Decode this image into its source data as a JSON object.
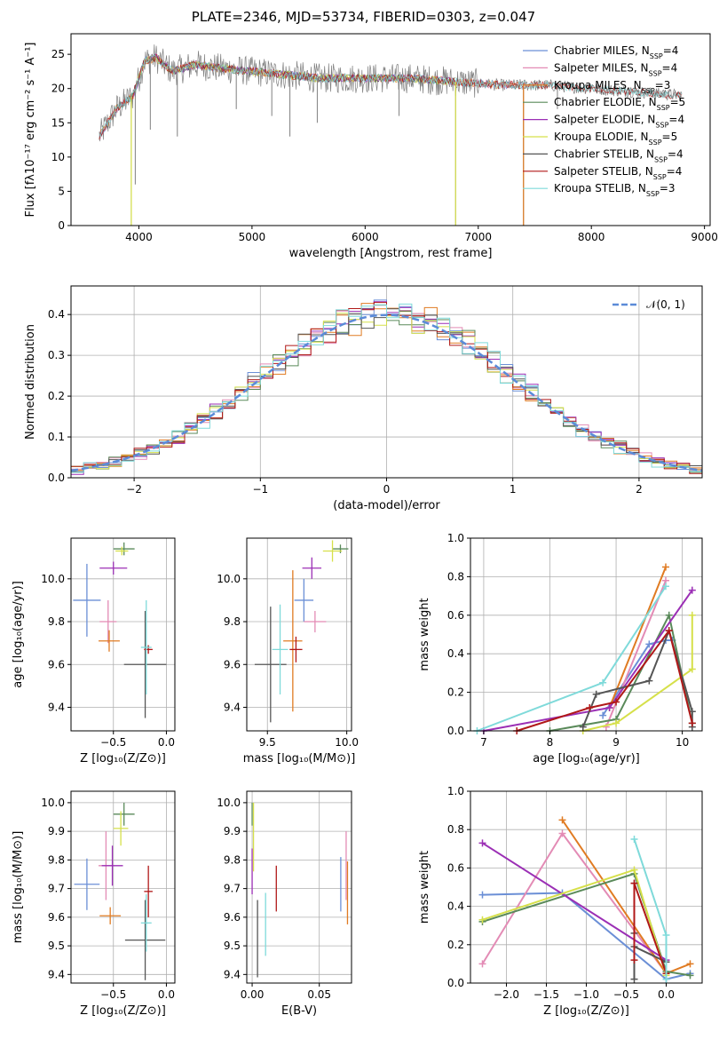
{
  "title": "PLATE=2346, MJD=53734, FIBERID=0303, z=0.047",
  "colors": {
    "Chabrier MILES": "#6b8fd6",
    "Salpeter MILES": "#e38bb5",
    "Kroupa MILES": "#e07b22",
    "Chabrier ELODIE": "#5a8a5a",
    "Salpeter ELODIE": "#9b2fb5",
    "Kroupa ELODIE": "#d6e04a",
    "Chabrier STELIB": "#555555",
    "Salpeter STELIB": "#b01818",
    "Kroupa STELIB": "#7fdada",
    "gaussian": "#5b8bd8"
  },
  "chart_data": [
    {
      "type": "line",
      "panel": "spectrum",
      "xlabel": "wavelength [Angstrom, rest frame]",
      "ylabel": "Flux [fλ10⁻¹⁷ erg cm⁻² s⁻¹ A⁻¹]",
      "xlim": [
        3400,
        9050
      ],
      "ylim": [
        0,
        28
      ],
      "xticks": [
        "4000",
        "5000",
        "6000",
        "7000",
        "8000",
        "9000"
      ],
      "yticks": [
        "0",
        "5",
        "10",
        "15",
        "20",
        "25"
      ],
      "grid": false,
      "legend_position": "top-right",
      "legend": [
        {
          "model": "Chabrier MILES",
          "nssp": "4"
        },
        {
          "model": "Salpeter MILES",
          "nssp": "4"
        },
        {
          "model": "Kroupa MILES",
          "nssp": "3"
        },
        {
          "model": "Chabrier ELODIE",
          "nssp": "5"
        },
        {
          "model": "Salpeter ELODIE",
          "nssp": "4"
        },
        {
          "model": "Kroupa ELODIE",
          "nssp": "5"
        },
        {
          "model": "Chabrier STELIB",
          "nssp": "4"
        },
        {
          "model": "Salpeter STELIB",
          "nssp": "4"
        },
        {
          "model": "Kroupa STELIB",
          "nssp": "3"
        }
      ],
      "continuum": {
        "x": [
          3650,
          3800,
          3950,
          4050,
          4150,
          4300,
          4500,
          4700,
          5000,
          5300,
          5600,
          6000,
          6400,
          6800,
          7200,
          7600,
          8000,
          8400,
          8800
        ],
        "y": [
          13,
          17,
          19,
          24,
          24.5,
          22.5,
          23.5,
          23,
          22.5,
          22,
          21.5,
          21.5,
          21.5,
          21,
          20.5,
          20.5,
          20,
          19.5,
          19
        ]
      },
      "model_ranges": [
        {
          "model": "Chabrier MILES",
          "x": [
            3650,
            7400
          ]
        },
        {
          "model": "Salpeter MILES",
          "x": [
            3650,
            7400
          ]
        },
        {
          "model": "Kroupa MILES",
          "x": [
            3650,
            7400
          ]
        },
        {
          "model": "Chabrier ELODIE",
          "x": [
            3900,
            6800
          ]
        },
        {
          "model": "Salpeter ELODIE",
          "x": [
            3900,
            6800
          ]
        },
        {
          "model": "Kroupa ELODIE",
          "x": [
            3900,
            6800
          ]
        },
        {
          "model": "Chabrier STELIB",
          "x": [
            3650,
            8800
          ]
        },
        {
          "model": "Salpeter STELIB",
          "x": [
            3650,
            8800
          ]
        },
        {
          "model": "Kroupa STELIB",
          "x": [
            3650,
            8800
          ]
        }
      ],
      "absorption_dips": [
        {
          "x": 3933,
          "y": 0
        },
        {
          "x": 3968,
          "y": 6
        },
        {
          "x": 4101,
          "y": 14
        },
        {
          "x": 4340,
          "y": 13
        },
        {
          "x": 4861,
          "y": 17
        },
        {
          "x": 5175,
          "y": 16
        },
        {
          "x": 5335,
          "y": 13
        },
        {
          "x": 5577,
          "y": 15
        },
        {
          "x": 6300,
          "y": 16
        },
        {
          "x": 6800,
          "y": 0
        },
        {
          "x": 7400,
          "y": 0
        },
        {
          "x": 7700,
          "y": 17
        }
      ]
    },
    {
      "type": "line",
      "panel": "residual-histogram",
      "xlabel": "(data-model)/error",
      "ylabel": "Normed distribution",
      "xlim": [
        -2.5,
        2.5
      ],
      "ylim": [
        0,
        0.47
      ],
      "xticks": [
        "−2",
        "−1",
        "0",
        "1",
        "2"
      ],
      "yticks": [
        "0.0",
        "0.1",
        "0.2",
        "0.3",
        "0.4"
      ],
      "grid": true,
      "legend_position": "top-right",
      "gaussian_label": "𝒩(0, 1)",
      "gaussian": {
        "mean": 0,
        "sigma": 1
      },
      "histograms": {
        "bin_width": 0.1,
        "range": [
          -2.5,
          2.5
        ],
        "shape": "approximately N(0,1) with scatter per model"
      }
    },
    {
      "type": "scatter",
      "panel": "Z-vs-age",
      "xlabel": "Z [log₁₀(Z/Z⊙)]",
      "ylabel": "age  [log₁₀(age/yr)]",
      "xlim": [
        -0.9,
        0.08
      ],
      "ylim": [
        9.29,
        10.19
      ],
      "xticks": [
        "−0.5",
        "0.0"
      ],
      "xtick_values": [
        -0.5,
        0.0
      ],
      "yticks": [
        "9.4",
        "9.6",
        "9.8",
        "10.0"
      ],
      "ytick_values": [
        9.4,
        9.6,
        9.8,
        10.0
      ],
      "grid": true,
      "points": [
        {
          "model": "Chabrier MILES",
          "x": -0.75,
          "xerr": 0.13,
          "y": 9.9,
          "yerr": 0.17
        },
        {
          "model": "Salpeter MILES",
          "x": -0.55,
          "xerr": 0.08,
          "y": 9.8,
          "yerr": 0.1
        },
        {
          "model": "Kroupa MILES",
          "x": -0.54,
          "xerr": 0.1,
          "y": 9.71,
          "yerr": 0.05
        },
        {
          "model": "Chabrier ELODIE",
          "x": -0.4,
          "xerr": 0.1,
          "y": 10.14,
          "yerr": 0.03
        },
        {
          "model": "Salpeter ELODIE",
          "x": -0.5,
          "xerr": 0.13,
          "y": 10.05,
          "yerr": 0.03
        },
        {
          "model": "Kroupa ELODIE",
          "x": -0.42,
          "xerr": 0.06,
          "y": 10.13,
          "yerr": 0.02
        },
        {
          "model": "Chabrier STELIB",
          "x": -0.2,
          "xerr": 0.2,
          "y": 9.6,
          "yerr": 0.25
        },
        {
          "model": "Salpeter STELIB",
          "x": -0.17,
          "xerr": 0.04,
          "y": 9.67,
          "yerr": 0.02
        },
        {
          "model": "Kroupa STELIB",
          "x": -0.19,
          "xerr": 0.05,
          "y": 9.68,
          "yerr": 0.22
        }
      ]
    },
    {
      "type": "scatter",
      "panel": "mass-vs-age",
      "xlabel": "mass [log₁₀(M/M⊙)]",
      "ylabel": "",
      "xlim": [
        9.37,
        10.03
      ],
      "ylim": [
        9.29,
        10.19
      ],
      "xticks": [
        "9.5",
        "10.0"
      ],
      "xtick_values": [
        9.5,
        10.0
      ],
      "yticks": [
        "9.4",
        "9.6",
        "9.8",
        "10.0"
      ],
      "ytick_values": [
        9.4,
        9.6,
        9.8,
        10.0
      ],
      "grid": true,
      "points": [
        {
          "model": "Chabrier MILES",
          "x": 9.73,
          "xerr": 0.06,
          "y": 9.9,
          "yerr": 0.1
        },
        {
          "model": "Salpeter MILES",
          "x": 9.8,
          "xerr": 0.07,
          "y": 9.8,
          "yerr": 0.05
        },
        {
          "model": "Kroupa MILES",
          "x": 9.66,
          "xerr": 0.06,
          "y": 9.71,
          "yerr": 0.33
        },
        {
          "model": "Chabrier ELODIE",
          "x": 9.96,
          "xerr": 0.05,
          "y": 10.14,
          "yerr": 0.02
        },
        {
          "model": "Salpeter ELODIE",
          "x": 9.78,
          "xerr": 0.06,
          "y": 10.05,
          "yerr": 0.05
        },
        {
          "model": "Kroupa ELODIE",
          "x": 9.91,
          "xerr": 0.06,
          "y": 10.13,
          "yerr": 0.05
        },
        {
          "model": "Chabrier STELIB",
          "x": 9.52,
          "xerr": 0.1,
          "y": 9.6,
          "yerr": 0.27
        },
        {
          "model": "Salpeter STELIB",
          "x": 9.68,
          "xerr": 0.04,
          "y": 9.67,
          "yerr": 0.06
        },
        {
          "model": "Kroupa STELIB",
          "x": 9.58,
          "xerr": 0.05,
          "y": 9.67,
          "yerr": 0.21
        }
      ]
    },
    {
      "type": "line",
      "panel": "age-vs-mass-weight",
      "xlabel": "age  [log₁₀(age/yr)]",
      "ylabel": "mass weight",
      "xlim": [
        6.8,
        10.3
      ],
      "ylim": [
        0,
        1
      ],
      "xticks": [
        "7",
        "8",
        "9",
        "10"
      ],
      "xtick_values": [
        7,
        8,
        9,
        10
      ],
      "yticks": [
        "0.0",
        "0.2",
        "0.4",
        "0.6",
        "0.8",
        "1.0"
      ],
      "ytick_values": [
        0,
        0.2,
        0.4,
        0.6,
        0.8,
        1.0
      ],
      "grid": true,
      "series": [
        {
          "model": "Chabrier MILES",
          "x": [
            8.8,
            9.5,
            9.75,
            9.85
          ],
          "y": [
            0.08,
            0.45,
            0.47,
            0.47
          ]
        },
        {
          "model": "Salpeter MILES",
          "x": [
            8.85,
            9.75
          ],
          "y": [
            0.02,
            0.78
          ]
        },
        {
          "model": "Kroupa MILES",
          "x": [
            8.9,
            9.75
          ],
          "y": [
            0.12,
            0.85
          ]
        },
        {
          "model": "Chabrier ELODIE",
          "x": [
            8.0,
            9.0,
            9.8,
            10.15
          ],
          "y": [
            0.0,
            0.06,
            0.6,
            0.04
          ]
        },
        {
          "model": "Salpeter ELODIE",
          "x": [
            7.0,
            8.9,
            10.15
          ],
          "y": [
            0.0,
            0.12,
            0.73
          ]
        },
        {
          "model": "Kroupa ELODIE",
          "x": [
            8.5,
            9.0,
            10.15,
            10.15
          ],
          "y": [
            0.0,
            0.04,
            0.32,
            0.6
          ]
        },
        {
          "model": "Chabrier STELIB",
          "x": [
            8.5,
            8.7,
            9.5,
            9.8,
            10.15,
            10.15
          ],
          "y": [
            0.02,
            0.19,
            0.26,
            0.52,
            0.1,
            0.02
          ]
        },
        {
          "model": "Salpeter STELIB",
          "x": [
            7.5,
            8.6,
            9.0,
            9.8,
            10.15
          ],
          "y": [
            0.0,
            0.12,
            0.15,
            0.52,
            0.04
          ]
        },
        {
          "model": "Kroupa STELIB",
          "x": [
            6.9,
            8.8,
            9.75
          ],
          "y": [
            0.0,
            0.25,
            0.75
          ]
        }
      ]
    },
    {
      "type": "scatter",
      "panel": "Z-vs-mass",
      "xlabel": "Z [log₁₀(Z/Z⊙)]",
      "ylabel": "mass [log₁₀(M/M⊙)]",
      "xlim": [
        -0.9,
        0.08
      ],
      "ylim": [
        9.37,
        10.04
      ],
      "xticks": [
        "−0.5",
        "0.0"
      ],
      "xtick_values": [
        -0.5,
        0.0
      ],
      "yticks": [
        "9.4",
        "9.5",
        "9.6",
        "9.7",
        "9.8",
        "9.9",
        "10.0"
      ],
      "ytick_values": [
        9.4,
        9.5,
        9.6,
        9.7,
        9.8,
        9.9,
        10.0
      ],
      "grid": true,
      "points": [
        {
          "model": "Chabrier MILES",
          "x": -0.75,
          "xerr": 0.12,
          "y": 9.715,
          "yerr": 0.09
        },
        {
          "model": "Salpeter MILES",
          "x": -0.57,
          "xerr": 0.07,
          "y": 9.78,
          "yerr": 0.12
        },
        {
          "model": "Kroupa MILES",
          "x": -0.53,
          "xerr": 0.1,
          "y": 9.605,
          "yerr": 0.03
        },
        {
          "model": "Chabrier ELODIE",
          "x": -0.4,
          "xerr": 0.1,
          "y": 9.96,
          "yerr": 0.04
        },
        {
          "model": "Salpeter ELODIE",
          "x": -0.51,
          "xerr": 0.1,
          "y": 9.78,
          "yerr": 0.07
        },
        {
          "model": "Kroupa ELODIE",
          "x": -0.43,
          "xerr": 0.07,
          "y": 9.91,
          "yerr": 0.06
        },
        {
          "model": "Chabrier STELIB",
          "x": -0.2,
          "xerr": 0.19,
          "y": 9.52,
          "yerr": 0.14
        },
        {
          "model": "Salpeter STELIB",
          "x": -0.17,
          "xerr": 0.04,
          "y": 9.69,
          "yerr": 0.09
        },
        {
          "model": "Kroupa STELIB",
          "x": -0.19,
          "xerr": 0.05,
          "y": 9.58,
          "yerr": 0.1
        }
      ]
    },
    {
      "type": "scatter",
      "panel": "EBV-vs-mass",
      "xlabel": "E(B-V)",
      "ylabel": "",
      "xlim": [
        -0.004,
        0.074
      ],
      "ylim": [
        9.37,
        10.04
      ],
      "xticks": [
        "0.00",
        "0.05"
      ],
      "xtick_values": [
        0.0,
        0.05
      ],
      "yticks": [
        "9.4",
        "9.5",
        "9.6",
        "9.7",
        "9.8",
        "9.9",
        "10.0"
      ],
      "ytick_values": [
        9.4,
        9.5,
        9.6,
        9.7,
        9.8,
        9.9,
        10.0
      ],
      "grid": true,
      "points": [
        {
          "model": "Chabrier MILES",
          "x": 0.066,
          "xerr": 0,
          "y": 9.715,
          "yerr": 0.095
        },
        {
          "model": "Salpeter MILES",
          "x": 0.07,
          "xerr": 0,
          "y": 9.78,
          "yerr": 0.12
        },
        {
          "model": "Kroupa MILES",
          "x": 0.071,
          "xerr": 0,
          "y": 9.685,
          "yerr": 0.11
        },
        {
          "model": "Chabrier ELODIE",
          "x": 0.0,
          "xerr": 0,
          "y": 9.96,
          "yerr": 0.04
        },
        {
          "model": "Salpeter ELODIE",
          "x": 0.0,
          "xerr": 0,
          "y": 9.76,
          "yerr": 0.08
        },
        {
          "model": "Kroupa ELODIE",
          "x": 0.001,
          "xerr": 0,
          "y": 9.88,
          "yerr": 0.12
        },
        {
          "model": "Chabrier STELIB",
          "x": 0.004,
          "xerr": 0,
          "y": 9.525,
          "yerr": 0.135
        },
        {
          "model": "Salpeter STELIB",
          "x": 0.018,
          "xerr": 0,
          "y": 9.7,
          "yerr": 0.08
        },
        {
          "model": "Kroupa STELIB",
          "x": 0.01,
          "xerr": 0,
          "y": 9.575,
          "yerr": 0.11
        }
      ]
    },
    {
      "type": "line",
      "panel": "Z-vs-mass-weight",
      "xlabel": "Z [log₁₀(Z/Z⊙)]",
      "ylabel": "mass weight",
      "xlim": [
        -2.45,
        0.45
      ],
      "ylim": [
        0,
        1
      ],
      "xticks": [
        "−2.0",
        "−1.5",
        "−1.0",
        "−0.5",
        "0.0"
      ],
      "xtick_values": [
        -2.0,
        -1.5,
        -1.0,
        -0.5,
        0.0
      ],
      "yticks": [
        "0.0",
        "0.2",
        "0.4",
        "0.6",
        "0.8",
        "1.0"
      ],
      "ytick_values": [
        0,
        0.2,
        0.4,
        0.6,
        0.8,
        1.0
      ],
      "grid": true,
      "series": [
        {
          "model": "Chabrier MILES",
          "x": [
            -2.3,
            -1.3,
            0.0,
            0.3
          ],
          "y": [
            0.46,
            0.47,
            0.02,
            0.05
          ]
        },
        {
          "model": "Salpeter MILES",
          "x": [
            -2.3,
            -1.3,
            0.0
          ],
          "y": [
            0.1,
            0.78,
            0.05
          ]
        },
        {
          "model": "Kroupa MILES",
          "x": [
            -1.3,
            0.0,
            0.3
          ],
          "y": [
            0.85,
            0.05,
            0.1
          ]
        },
        {
          "model": "Chabrier ELODIE",
          "x": [
            -2.3,
            -0.4,
            0.0,
            0.3
          ],
          "y": [
            0.32,
            0.57,
            0.06,
            0.04
          ]
        },
        {
          "model": "Salpeter ELODIE",
          "x": [
            -2.3,
            0.0
          ],
          "y": [
            0.73,
            0.12
          ]
        },
        {
          "model": "Kroupa ELODIE",
          "x": [
            -2.3,
            -0.4,
            0.0
          ],
          "y": [
            0.33,
            0.59,
            0.04
          ]
        },
        {
          "model": "Chabrier STELIB",
          "x": [
            -0.4,
            -0.4,
            -0.4,
            -0.4,
            0.0
          ],
          "y": [
            0.02,
            0.52,
            0.26,
            0.19,
            0.11
          ]
        },
        {
          "model": "Salpeter STELIB",
          "x": [
            -0.4,
            -0.4,
            0.0
          ],
          "y": [
            0.12,
            0.52,
            0.05
          ]
        },
        {
          "model": "Kroupa STELIB",
          "x": [
            -0.4,
            0.0,
            0.0
          ],
          "y": [
            0.75,
            0.25,
            0.02
          ]
        }
      ]
    }
  ]
}
